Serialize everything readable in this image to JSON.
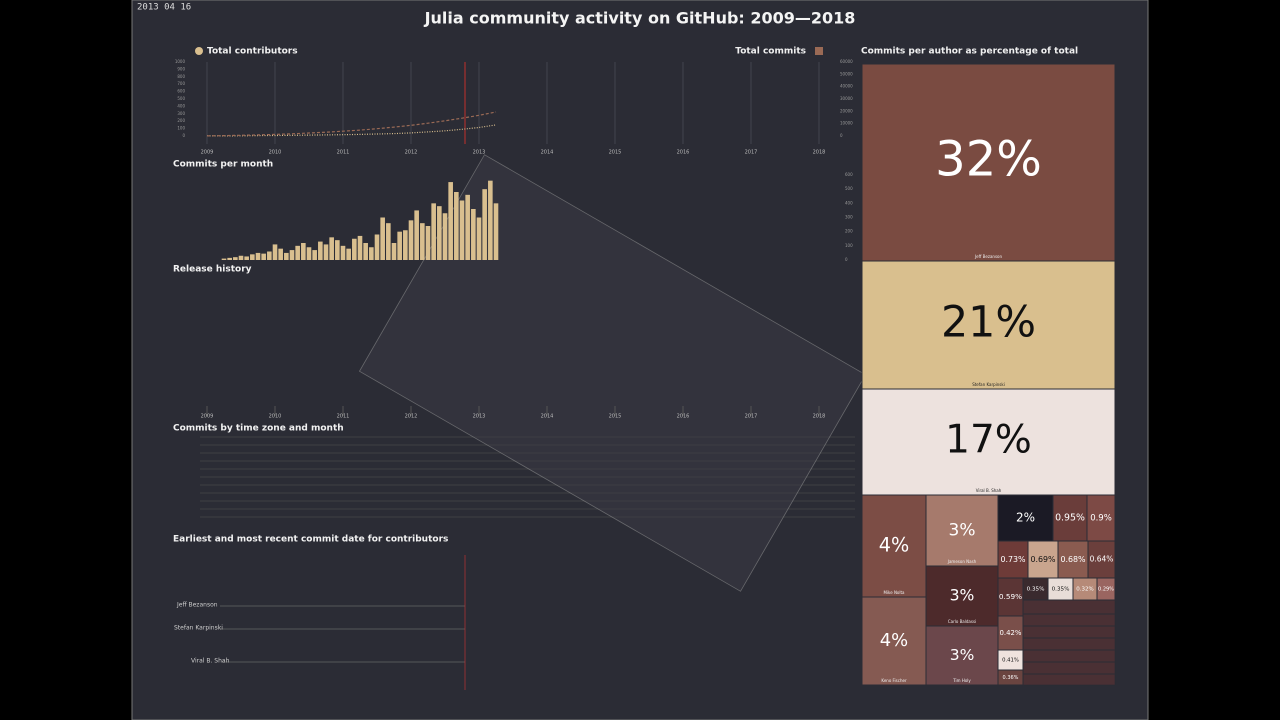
{
  "header": {
    "timestamp": "2013 04 16",
    "title": "Julia community activity on GitHub: 2009—2018"
  },
  "sections": {
    "commits_per_month": "Commits per month",
    "release_history": "Release history",
    "time_zone": "Commits by time zone and month",
    "contributors_dates": "Earliest and most recent commit date for contributors",
    "contributor_names": [
      "Jeff Bezanson",
      "Stefan Karpinski",
      "Viral B. Shah"
    ]
  },
  "chart_data": [
    {
      "type": "line",
      "x": [
        2009,
        2009.25,
        2009.5,
        2009.75,
        2010,
        2010.25,
        2010.5,
        2010.75,
        2011,
        2011.25,
        2011.5,
        2011.75,
        2012,
        2012.25,
        2012.5,
        2012.75,
        2013,
        2013.25
      ],
      "xlim": [
        2008.5,
        2018.5
      ],
      "xticks": [
        2009,
        2010,
        2011,
        2012,
        2013,
        2014,
        2015,
        2016,
        2017,
        2018
      ],
      "ylim": [
        0,
        1000
      ],
      "yticks": [
        0,
        100,
        200,
        300,
        400,
        500,
        600,
        700,
        800,
        900,
        1000
      ],
      "y2lim": [
        0,
        60000
      ],
      "y2ticks": [
        0,
        10000,
        20000,
        30000,
        40000,
        50000,
        60000
      ],
      "grid": true,
      "series": [
        {
          "name": "Total contributors",
          "color": "#d9bf8f",
          "values": [
            1,
            2,
            3,
            5,
            7,
            9,
            12,
            15,
            18,
            22,
            27,
            33,
            42,
            55,
            70,
            90,
            115,
            150
          ]
        },
        {
          "name": "Total commits",
          "color": "#9a6a55",
          "axis": "y2",
          "values": [
            100,
            300,
            600,
            900,
            1300,
            1800,
            2400,
            3100,
            3900,
            4800,
            5900,
            7200,
            8700,
            10400,
            12300,
            14400,
            16800,
            19500
          ]
        }
      ]
    },
    {
      "type": "bar",
      "color": "#d9bf8f",
      "x": [
        2009.25,
        2009.3333,
        2009.4167,
        2009.5,
        2009.5833,
        2009.6667,
        2009.75,
        2009.8333,
        2009.9167,
        2010,
        2010.0833,
        2010.1667,
        2010.25,
        2010.3333,
        2010.4167,
        2010.5,
        2010.5833,
        2010.6667,
        2010.75,
        2010.8333,
        2010.9167,
        2011,
        2011.0833,
        2011.1667,
        2011.25,
        2011.3333,
        2011.4167,
        2011.5,
        2011.5833,
        2011.6667,
        2011.75,
        2011.8333,
        2011.9167,
        2012,
        2012.0833,
        2012.1667,
        2012.25,
        2012.3333,
        2012.4167,
        2012.5,
        2012.5833,
        2012.6667,
        2012.75,
        2012.8333,
        2012.9167,
        2013,
        2013.0833,
        2013.1667,
        2013.25
      ],
      "values": [
        10,
        15,
        20,
        30,
        25,
        40,
        50,
        45,
        60,
        110,
        80,
        50,
        70,
        100,
        120,
        90,
        70,
        130,
        110,
        160,
        140,
        100,
        80,
        150,
        170,
        120,
        90,
        180,
        300,
        260,
        120,
        200,
        210,
        280,
        350,
        260,
        240,
        400,
        380,
        330,
        550,
        480,
        420,
        460,
        360,
        300,
        500,
        560,
        400
      ],
      "xlim": [
        2008.5,
        2018.5
      ],
      "ylim": [
        0,
        600
      ],
      "yticks": [
        0,
        100,
        200,
        300,
        400,
        500,
        600
      ]
    },
    {
      "type": "treemap",
      "title": "Commits per author as percentage of total",
      "categories": [
        "Jeff Bezanson",
        "Stefan Karpinski",
        "Viral B. Shah",
        "Mike Nolta",
        "Keno Fischer",
        "Jameson Nash",
        "Carlo Baldassi",
        "Tim Holy",
        null,
        null,
        null,
        null,
        null,
        null,
        null,
        null,
        null,
        null,
        null,
        null,
        null,
        null,
        null
      ],
      "values": [
        32,
        21,
        17,
        4,
        4,
        3,
        3,
        3,
        2,
        0.95,
        0.9,
        0.73,
        0.69,
        0.68,
        0.64,
        0.59,
        0.35,
        0.35,
        0.32,
        0.29,
        0.42,
        0.41,
        0.36
      ],
      "value_labels": [
        "32%",
        "21%",
        "17%",
        "4%",
        "4%",
        "3%",
        "3%",
        "3%",
        "2%",
        "0.95%",
        "0.9%",
        "0.73%",
        "0.69%",
        "0.68%",
        "0.64%",
        "0.59%",
        "0.35%",
        "0.35%",
        "0.32%",
        "0.29%",
        "0.42%",
        "0.41%",
        "0.36%"
      ],
      "colors": [
        "#7a4b41",
        "#d9bf8e",
        "#ede2de",
        "#7c4d45",
        "#855a52",
        "#a67a6c",
        "#4d2a2b",
        "#6b474b",
        "#1b1a25",
        "#6a3d3a",
        "#7d4a45",
        "#6e3b38",
        "#c9a58e",
        "#8a5b50",
        "#6b3f3c",
        "#5b3535",
        "#3a2a2e",
        "#e8ddd8",
        "#b68a78",
        "#9a6560",
        "#7a4f4a",
        "#efe3de",
        "#6a4440"
      ]
    }
  ]
}
